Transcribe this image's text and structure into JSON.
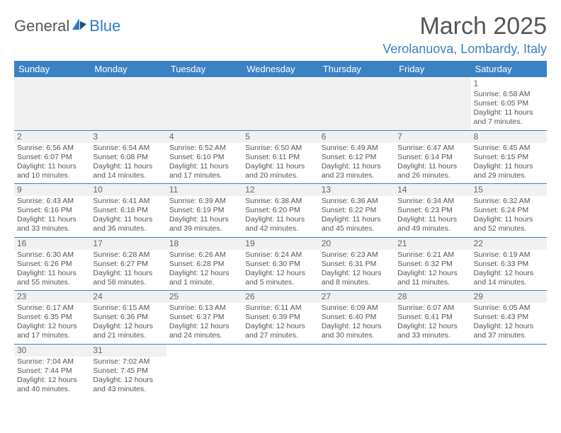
{
  "logo": {
    "text_general": "General",
    "text_blue": "Blue"
  },
  "title": "March 2025",
  "location": "Verolanuova, Lombardy, Italy",
  "colors": {
    "header_bg": "#3a82c4",
    "header_fg": "#ffffff",
    "accent": "#3a82c4",
    "text": "#555555",
    "empty_bg": "#f1f1f1"
  },
  "day_headers": [
    "Sunday",
    "Monday",
    "Tuesday",
    "Wednesday",
    "Thursday",
    "Friday",
    "Saturday"
  ],
  "weeks": [
    [
      null,
      null,
      null,
      null,
      null,
      null,
      {
        "n": "1",
        "sr": "Sunrise: 6:58 AM",
        "ss": "Sunset: 6:05 PM",
        "dl": "Daylight: 11 hours and 7 minutes."
      }
    ],
    [
      {
        "n": "2",
        "sr": "Sunrise: 6:56 AM",
        "ss": "Sunset: 6:07 PM",
        "dl": "Daylight: 11 hours and 10 minutes."
      },
      {
        "n": "3",
        "sr": "Sunrise: 6:54 AM",
        "ss": "Sunset: 6:08 PM",
        "dl": "Daylight: 11 hours and 14 minutes."
      },
      {
        "n": "4",
        "sr": "Sunrise: 6:52 AM",
        "ss": "Sunset: 6:10 PM",
        "dl": "Daylight: 11 hours and 17 minutes."
      },
      {
        "n": "5",
        "sr": "Sunrise: 6:50 AM",
        "ss": "Sunset: 6:11 PM",
        "dl": "Daylight: 11 hours and 20 minutes."
      },
      {
        "n": "6",
        "sr": "Sunrise: 6:49 AM",
        "ss": "Sunset: 6:12 PM",
        "dl": "Daylight: 11 hours and 23 minutes."
      },
      {
        "n": "7",
        "sr": "Sunrise: 6:47 AM",
        "ss": "Sunset: 6:14 PM",
        "dl": "Daylight: 11 hours and 26 minutes."
      },
      {
        "n": "8",
        "sr": "Sunrise: 6:45 AM",
        "ss": "Sunset: 6:15 PM",
        "dl": "Daylight: 11 hours and 29 minutes."
      }
    ],
    [
      {
        "n": "9",
        "sr": "Sunrise: 6:43 AM",
        "ss": "Sunset: 6:16 PM",
        "dl": "Daylight: 11 hours and 33 minutes."
      },
      {
        "n": "10",
        "sr": "Sunrise: 6:41 AM",
        "ss": "Sunset: 6:18 PM",
        "dl": "Daylight: 11 hours and 36 minutes."
      },
      {
        "n": "11",
        "sr": "Sunrise: 6:39 AM",
        "ss": "Sunset: 6:19 PM",
        "dl": "Daylight: 11 hours and 39 minutes."
      },
      {
        "n": "12",
        "sr": "Sunrise: 6:38 AM",
        "ss": "Sunset: 6:20 PM",
        "dl": "Daylight: 11 hours and 42 minutes."
      },
      {
        "n": "13",
        "sr": "Sunrise: 6:36 AM",
        "ss": "Sunset: 6:22 PM",
        "dl": "Daylight: 11 hours and 45 minutes."
      },
      {
        "n": "14",
        "sr": "Sunrise: 6:34 AM",
        "ss": "Sunset: 6:23 PM",
        "dl": "Daylight: 11 hours and 49 minutes."
      },
      {
        "n": "15",
        "sr": "Sunrise: 6:32 AM",
        "ss": "Sunset: 6:24 PM",
        "dl": "Daylight: 11 hours and 52 minutes."
      }
    ],
    [
      {
        "n": "16",
        "sr": "Sunrise: 6:30 AM",
        "ss": "Sunset: 6:26 PM",
        "dl": "Daylight: 11 hours and 55 minutes."
      },
      {
        "n": "17",
        "sr": "Sunrise: 6:28 AM",
        "ss": "Sunset: 6:27 PM",
        "dl": "Daylight: 11 hours and 58 minutes."
      },
      {
        "n": "18",
        "sr": "Sunrise: 6:26 AM",
        "ss": "Sunset: 6:28 PM",
        "dl": "Daylight: 12 hours and 1 minute."
      },
      {
        "n": "19",
        "sr": "Sunrise: 6:24 AM",
        "ss": "Sunset: 6:30 PM",
        "dl": "Daylight: 12 hours and 5 minutes."
      },
      {
        "n": "20",
        "sr": "Sunrise: 6:23 AM",
        "ss": "Sunset: 6:31 PM",
        "dl": "Daylight: 12 hours and 8 minutes."
      },
      {
        "n": "21",
        "sr": "Sunrise: 6:21 AM",
        "ss": "Sunset: 6:32 PM",
        "dl": "Daylight: 12 hours and 11 minutes."
      },
      {
        "n": "22",
        "sr": "Sunrise: 6:19 AM",
        "ss": "Sunset: 6:33 PM",
        "dl": "Daylight: 12 hours and 14 minutes."
      }
    ],
    [
      {
        "n": "23",
        "sr": "Sunrise: 6:17 AM",
        "ss": "Sunset: 6:35 PM",
        "dl": "Daylight: 12 hours and 17 minutes."
      },
      {
        "n": "24",
        "sr": "Sunrise: 6:15 AM",
        "ss": "Sunset: 6:36 PM",
        "dl": "Daylight: 12 hours and 21 minutes."
      },
      {
        "n": "25",
        "sr": "Sunrise: 6:13 AM",
        "ss": "Sunset: 6:37 PM",
        "dl": "Daylight: 12 hours and 24 minutes."
      },
      {
        "n": "26",
        "sr": "Sunrise: 6:11 AM",
        "ss": "Sunset: 6:39 PM",
        "dl": "Daylight: 12 hours and 27 minutes."
      },
      {
        "n": "27",
        "sr": "Sunrise: 6:09 AM",
        "ss": "Sunset: 6:40 PM",
        "dl": "Daylight: 12 hours and 30 minutes."
      },
      {
        "n": "28",
        "sr": "Sunrise: 6:07 AM",
        "ss": "Sunset: 6:41 PM",
        "dl": "Daylight: 12 hours and 33 minutes."
      },
      {
        "n": "29",
        "sr": "Sunrise: 6:05 AM",
        "ss": "Sunset: 6:43 PM",
        "dl": "Daylight: 12 hours and 37 minutes."
      }
    ],
    [
      {
        "n": "30",
        "sr": "Sunrise: 7:04 AM",
        "ss": "Sunset: 7:44 PM",
        "dl": "Daylight: 12 hours and 40 minutes."
      },
      {
        "n": "31",
        "sr": "Sunrise: 7:02 AM",
        "ss": "Sunset: 7:45 PM",
        "dl": "Daylight: 12 hours and 43 minutes."
      },
      null,
      null,
      null,
      null,
      null
    ]
  ]
}
